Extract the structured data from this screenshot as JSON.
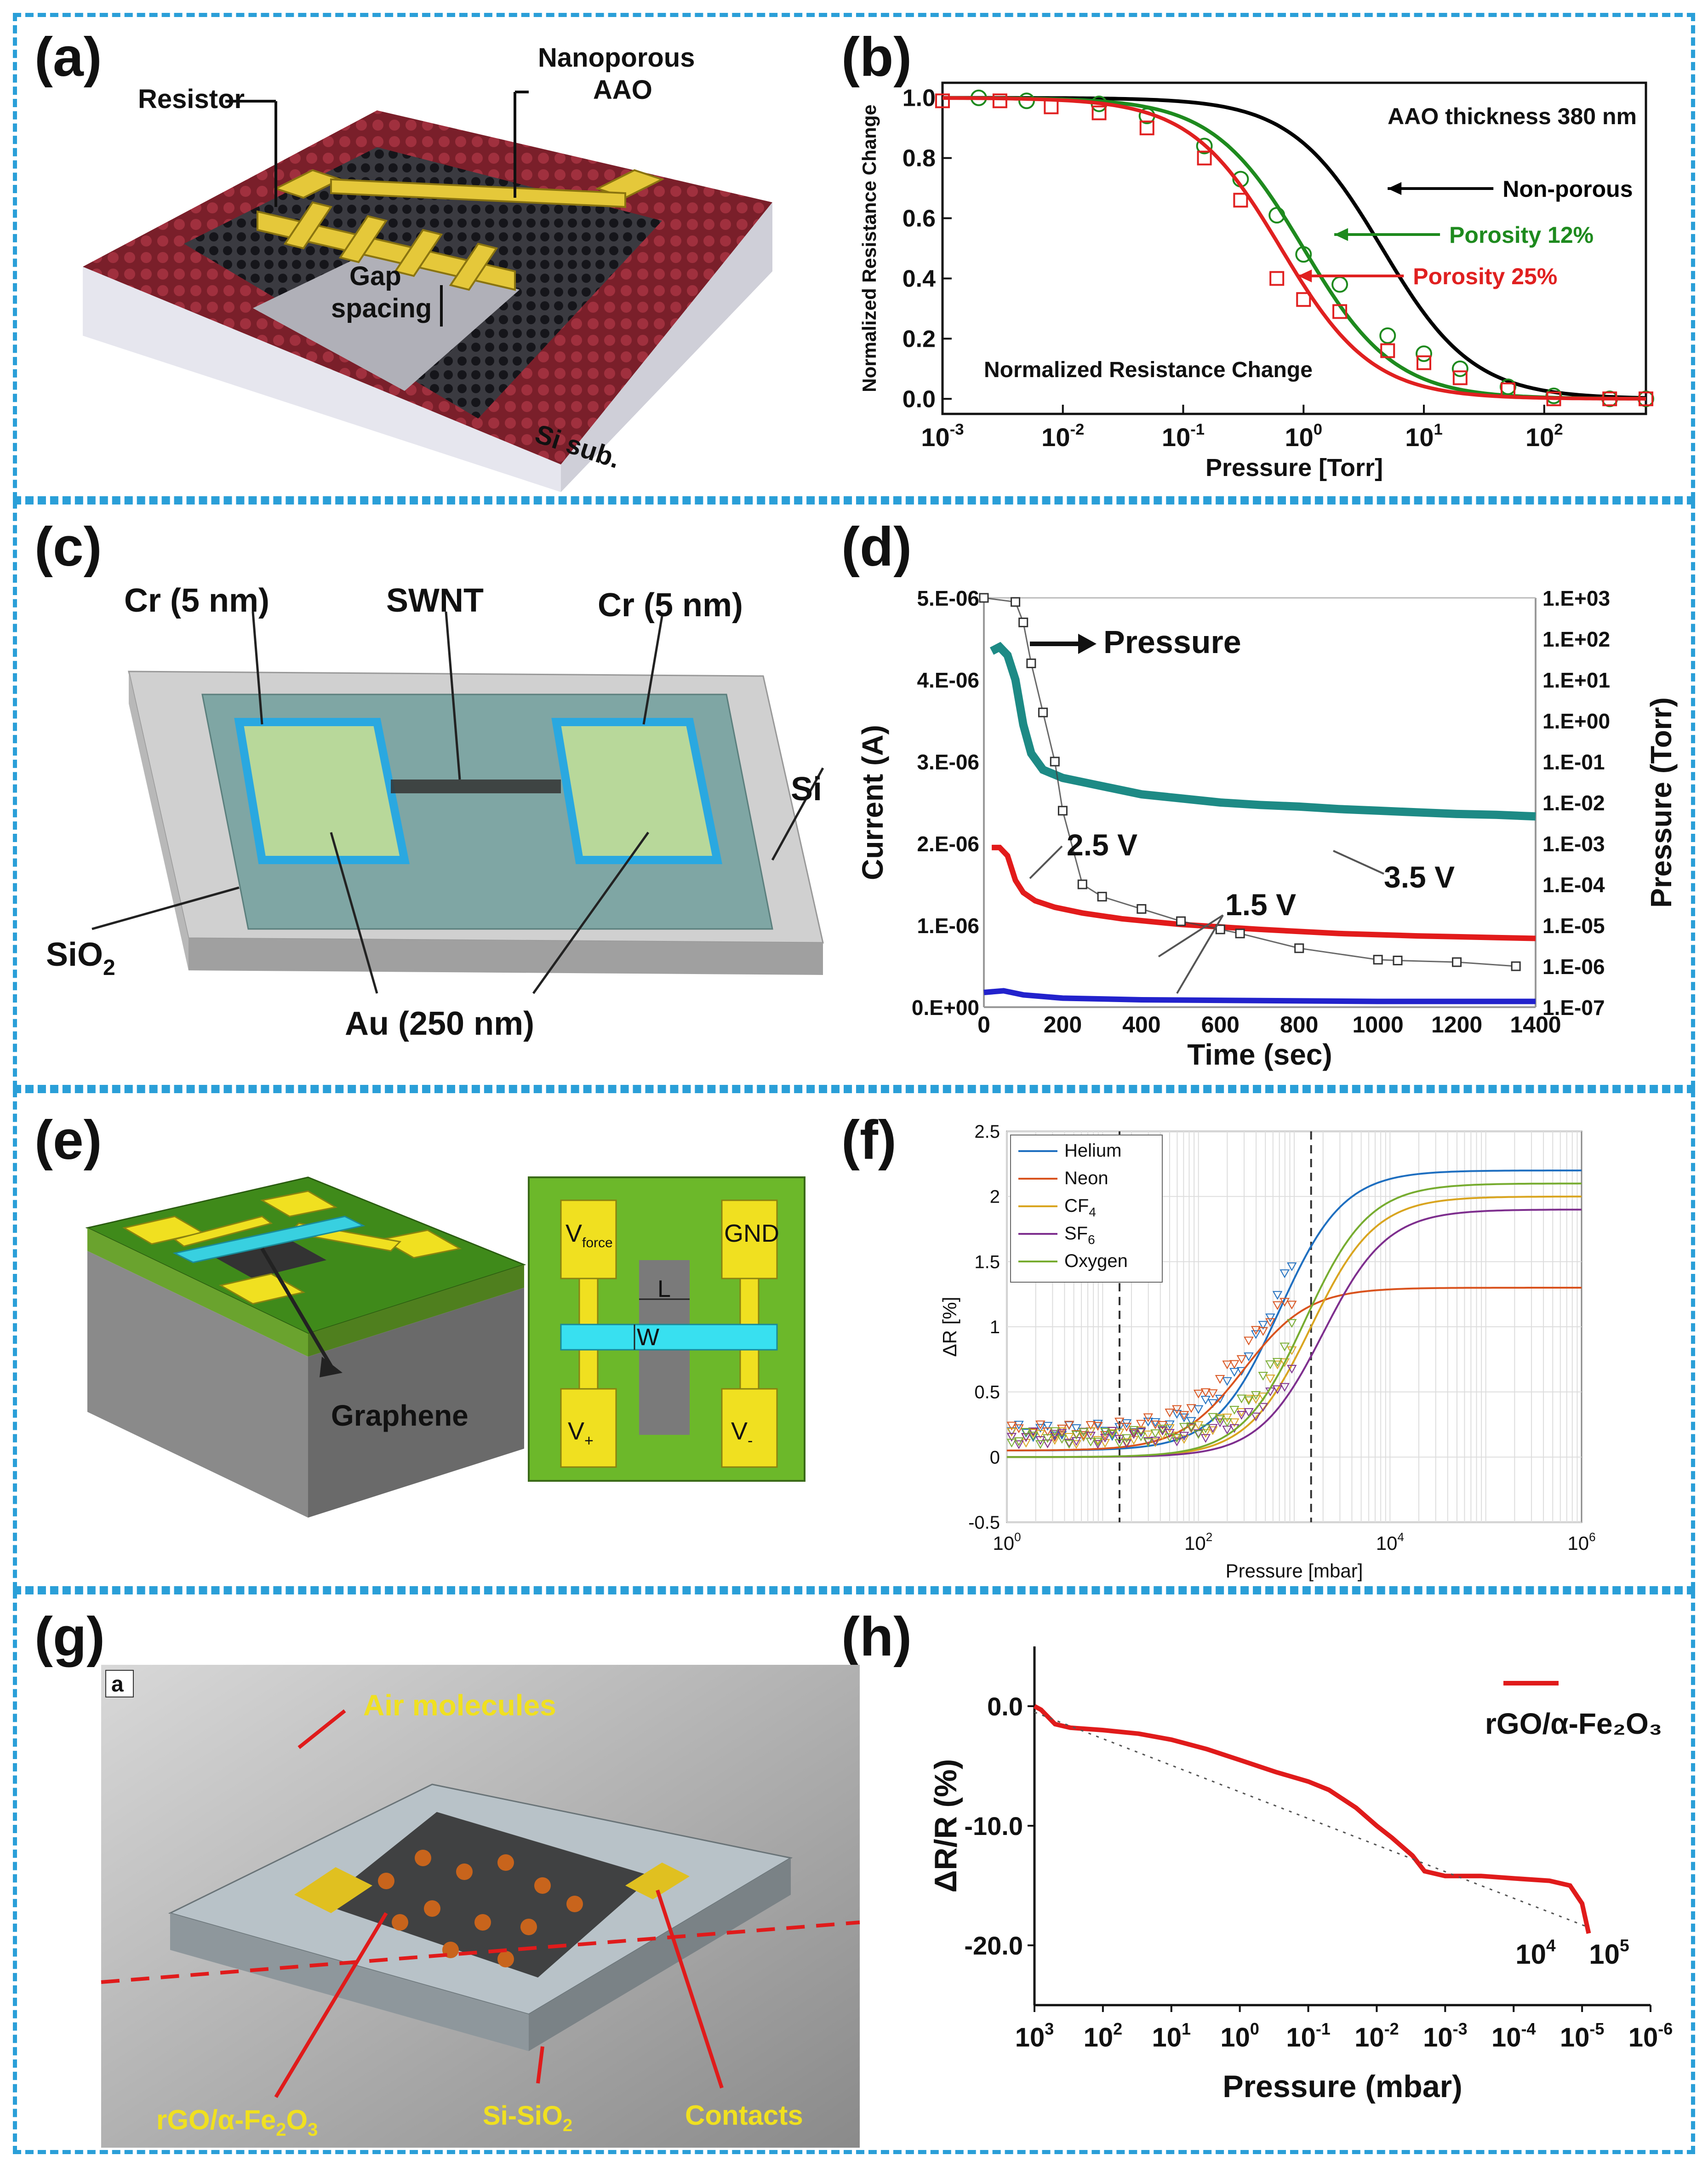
{
  "panels": {
    "a": {
      "label": "(a)",
      "resistor": "Resistor",
      "aao_line1": "Nanoporous",
      "aao_line2": "AAO",
      "gap_line1": "Gap",
      "gap_line2": "spacing",
      "substrate": "Si sub."
    },
    "b": {
      "label": "(b)"
    },
    "c": {
      "label": "(c)",
      "cr_left": "Cr (5 nm)",
      "swnt": "SWNT",
      "cr_right": "Cr (5 nm)",
      "si": "Si",
      "sio2": "SiO",
      "sio2_sub": "2",
      "au": "Au (250 nm)"
    },
    "d": {
      "label": "(d)"
    },
    "e": {
      "label": "(e)",
      "graphene": "Graphene",
      "vforce": "V",
      "vforce_sub": "force",
      "gnd": "GND",
      "l": "L",
      "w": "W",
      "vplus": "V",
      "vplus_sub": "+",
      "vminus": "V",
      "vminus_sub": "-"
    },
    "f": {
      "label": "(f)"
    },
    "g": {
      "label": "(g)",
      "inset": "a",
      "air": "Air molecules",
      "rgo": "rGO/α-Fe",
      "rgo_sub1": "2",
      "rgo_mid": "O",
      "rgo_sub2": "3",
      "sisio2": "Si-SiO",
      "sisio2_sub": "2",
      "contacts": "Contacts"
    },
    "h": {
      "label": "(h)"
    }
  },
  "chart_data": [
    {
      "id": "b",
      "type": "line",
      "title": "",
      "xlabel": "Pressure [Torr]",
      "ylabel": "Normalized Resistance Change",
      "xscale": "log",
      "xlim": [
        0.001,
        700
      ],
      "ylim": [
        -0.05,
        1.05
      ],
      "xticks": [
        0.001,
        0.01,
        0.1,
        1,
        10,
        100
      ],
      "xtick_labels": [
        [
          "10",
          "-3"
        ],
        [
          "10",
          "-2"
        ],
        [
          "10",
          "-1"
        ],
        [
          "10",
          "0"
        ],
        [
          "10",
          "1"
        ],
        [
          "10",
          "2"
        ]
      ],
      "yticks": [
        0.0,
        0.2,
        0.4,
        0.6,
        0.8,
        1.0
      ],
      "ytick_labels": [
        "0.0",
        "0.2",
        "0.4",
        "0.6",
        "0.8",
        "1.0"
      ],
      "annotations": [
        "AAO thickness 380 nm",
        "Normalized Resistance Change"
      ],
      "series": [
        {
          "name": "Non-porous",
          "color": "#000000",
          "p50": 4.5,
          "slope": 1.15
        },
        {
          "name": "Porosity 12%",
          "color": "#1e8a1e",
          "p50": 1.0,
          "slope": 1.15,
          "points_x": [
            0.002,
            0.005,
            0.02,
            0.05,
            0.15,
            0.3,
            0.6,
            1.0,
            2.0,
            5.0,
            10,
            20,
            50,
            120,
            350,
            700
          ],
          "points_y": [
            1.0,
            0.99,
            0.98,
            0.94,
            0.84,
            0.73,
            0.61,
            0.48,
            0.38,
            0.21,
            0.15,
            0.1,
            0.04,
            0.01,
            0.0,
            0.0
          ]
        },
        {
          "name": "Porosity 25%",
          "color": "#e02020",
          "p50": 0.65,
          "slope": 1.15,
          "points_x": [
            0.001,
            0.003,
            0.008,
            0.02,
            0.05,
            0.15,
            0.3,
            0.6,
            1.0,
            2.0,
            5.0,
            10,
            20,
            50,
            120,
            350,
            700
          ],
          "points_y": [
            0.99,
            0.99,
            0.97,
            0.95,
            0.9,
            0.8,
            0.66,
            0.4,
            0.33,
            0.29,
            0.16,
            0.12,
            0.07,
            0.03,
            0.0,
            0.0,
            0.0
          ]
        }
      ]
    },
    {
      "id": "d",
      "type": "line",
      "title": "",
      "xlabel": "Time (sec)",
      "ylabel": "Current (A)",
      "ylabel_right": "Pressure (Torr)",
      "xlim": [
        0,
        1400
      ],
      "ylim": [
        0,
        5e-06
      ],
      "xticks": [
        0,
        200,
        400,
        600,
        800,
        1000,
        1200,
        1400
      ],
      "yticks": [
        0,
        1e-06,
        2e-06,
        3e-06,
        4e-06,
        5e-06
      ],
      "ytick_labels": [
        "0.E+00",
        "1.E-06",
        "2.E-06",
        "3.E-06",
        "4.E-06",
        "5.E-06"
      ],
      "y2_tick_labels": [
        "1.E-07",
        "1.E-06",
        "1.E-05",
        "1.E-04",
        "1.E-03",
        "1.E-02",
        "1.E-01",
        "1.E+00",
        "1.E+01",
        "1.E+02",
        "1.E+03"
      ],
      "annotations": [
        "Pressure",
        "2.5 V",
        "3.5 V",
        "1.5 V"
      ],
      "series": [
        {
          "name": "3.5 V",
          "color": "#1d8a85",
          "x": [
            20,
            40,
            60,
            80,
            100,
            120,
            150,
            200,
            250,
            300,
            400,
            500,
            600,
            700,
            800,
            900,
            1000,
            1100,
            1200,
            1300,
            1400
          ],
          "y": [
            4.35e-06,
            4.4e-06,
            4.3e-06,
            4e-06,
            3.45e-06,
            3.1e-06,
            2.9e-06,
            2.8e-06,
            2.75e-06,
            2.7e-06,
            2.6e-06,
            2.55e-06,
            2.5e-06,
            2.47e-06,
            2.45e-06,
            2.42e-06,
            2.4e-06,
            2.38e-06,
            2.36e-06,
            2.35e-06,
            2.33e-06
          ]
        },
        {
          "name": "2.5 V",
          "color": "#e21b1b",
          "x": [
            20,
            40,
            60,
            80,
            100,
            130,
            180,
            250,
            350,
            500,
            700,
            900,
            1100,
            1300,
            1400
          ],
          "y": [
            1.95e-06,
            1.95e-06,
            1.85e-06,
            1.55e-06,
            1.4e-06,
            1.3e-06,
            1.22e-06,
            1.15e-06,
            1.08e-06,
            1.01e-06,
            9.5e-07,
            9e-07,
            8.7e-07,
            8.5e-07,
            8.4e-07
          ]
        },
        {
          "name": "1.5 V",
          "color": "#2222cc",
          "x": [
            0,
            50,
            100,
            200,
            400,
            700,
            1000,
            1400
          ],
          "y": [
            1.8e-07,
            2e-07,
            1.5e-07,
            1.1e-07,
            9e-08,
            8e-08,
            7e-08,
            7e-08
          ]
        },
        {
          "name": "Pressure",
          "color": "#444444",
          "x": [
            0,
            80,
            100,
            120,
            150,
            180,
            200,
            250,
            300,
            400,
            500,
            600,
            650,
            800,
            1000,
            1050,
            1200,
            1350
          ],
          "y": [
            5e-06,
            4.95e-06,
            4.7e-06,
            4.2e-06,
            3.6e-06,
            3e-06,
            2.4e-06,
            1.5e-06,
            1.35e-06,
            1.2e-06,
            1.05e-06,
            9.5e-07,
            9e-07,
            7.2e-07,
            5.8e-07,
            5.7e-07,
            5.5e-07,
            5e-07
          ]
        }
      ]
    },
    {
      "id": "f",
      "type": "line",
      "title": "",
      "xlabel": "Pressure [mbar]",
      "ylabel": "ΔR [%]",
      "xscale": "log",
      "xlim": [
        1,
        1000000
      ],
      "ylim": [
        -0.5,
        2.5
      ],
      "xticks": [
        1,
        100,
        10000,
        1000000
      ],
      "xtick_labels": [
        [
          "10",
          "0"
        ],
        [
          "10",
          "2"
        ],
        [
          "10",
          "4"
        ],
        [
          "10",
          "6"
        ]
      ],
      "yticks": [
        -0.5,
        0,
        0.5,
        1,
        1.5,
        2,
        2.5
      ],
      "ytick_labels": [
        "-0.5",
        "0",
        "0.5",
        "1",
        "1.5",
        "2",
        "2.5"
      ],
      "vlines": [
        15,
        1500
      ],
      "series": [
        {
          "name": "Helium",
          "color": "#1f6fc0",
          "low": 0.05,
          "high": 2.2,
          "p50": 700
        },
        {
          "name": "Neon",
          "color": "#d9531e",
          "low": 0.05,
          "high": 1.3,
          "p50": 300
        },
        {
          "name": "CF",
          "sub": "4",
          "color": "#d9a520",
          "low": 0.0,
          "high": 2.0,
          "p50": 1500
        },
        {
          "name": "SF",
          "sub": "6",
          "color": "#7e2f8e",
          "low": 0.0,
          "high": 1.9,
          "p50": 2000
        },
        {
          "name": "Oxygen",
          "color": "#77ac30",
          "low": 0.0,
          "high": 2.1,
          "p50": 1300
        }
      ]
    },
    {
      "id": "h",
      "type": "line",
      "title": "",
      "xlabel": "Pressure (mbar)",
      "ylabel": "ΔR/R (%)",
      "xscale": "log-reversed",
      "xlim": [
        1000,
        1e-06
      ],
      "ylim": [
        -25,
        5
      ],
      "xtick_labels": [
        [
          "10",
          "3"
        ],
        [
          "10",
          "2"
        ],
        [
          "10",
          "1"
        ],
        [
          "10",
          "0"
        ],
        [
          "10",
          "-1"
        ],
        [
          "10",
          "-2"
        ],
        [
          "10",
          "-3"
        ],
        [
          "10",
          "-4"
        ],
        [
          "10",
          "-5"
        ],
        [
          "10",
          "-6"
        ]
      ],
      "yticks": [
        0,
        -10,
        -20
      ],
      "ytick_labels": [
        "0.0",
        "-10.0",
        "-20.0"
      ],
      "annotations": [
        [
          "10",
          "4"
        ],
        [
          "10",
          "5"
        ]
      ],
      "legend": "rGO/α-Fe₂O₃",
      "series": [
        {
          "name": "rGO/α-Fe₂O₃",
          "color": "#e01b1b",
          "x": [
            1000,
            800,
            500,
            300,
            100,
            30,
            10,
            3,
            1,
            0.3,
            0.1,
            0.05,
            0.02,
            0.01,
            0.006,
            0.003,
            0.002,
            0.001,
            0.0003,
            0.0001,
            3e-05,
            1.5e-05,
            1e-05,
            8e-06
          ],
          "y": [
            0,
            -0.3,
            -1.5,
            -1.8,
            -2.0,
            -2.3,
            -2.8,
            -3.6,
            -4.5,
            -5.5,
            -6.3,
            -7.0,
            -8.5,
            -10.0,
            -11.0,
            -12.5,
            -13.8,
            -14.2,
            -14.2,
            -14.4,
            -14.6,
            -15.0,
            -16.5,
            -19.0
          ]
        },
        {
          "name": "fit",
          "color": "#555555",
          "x": [
            1000,
            8e-06
          ],
          "y": [
            -0.5,
            -18.5
          ]
        }
      ]
    }
  ]
}
